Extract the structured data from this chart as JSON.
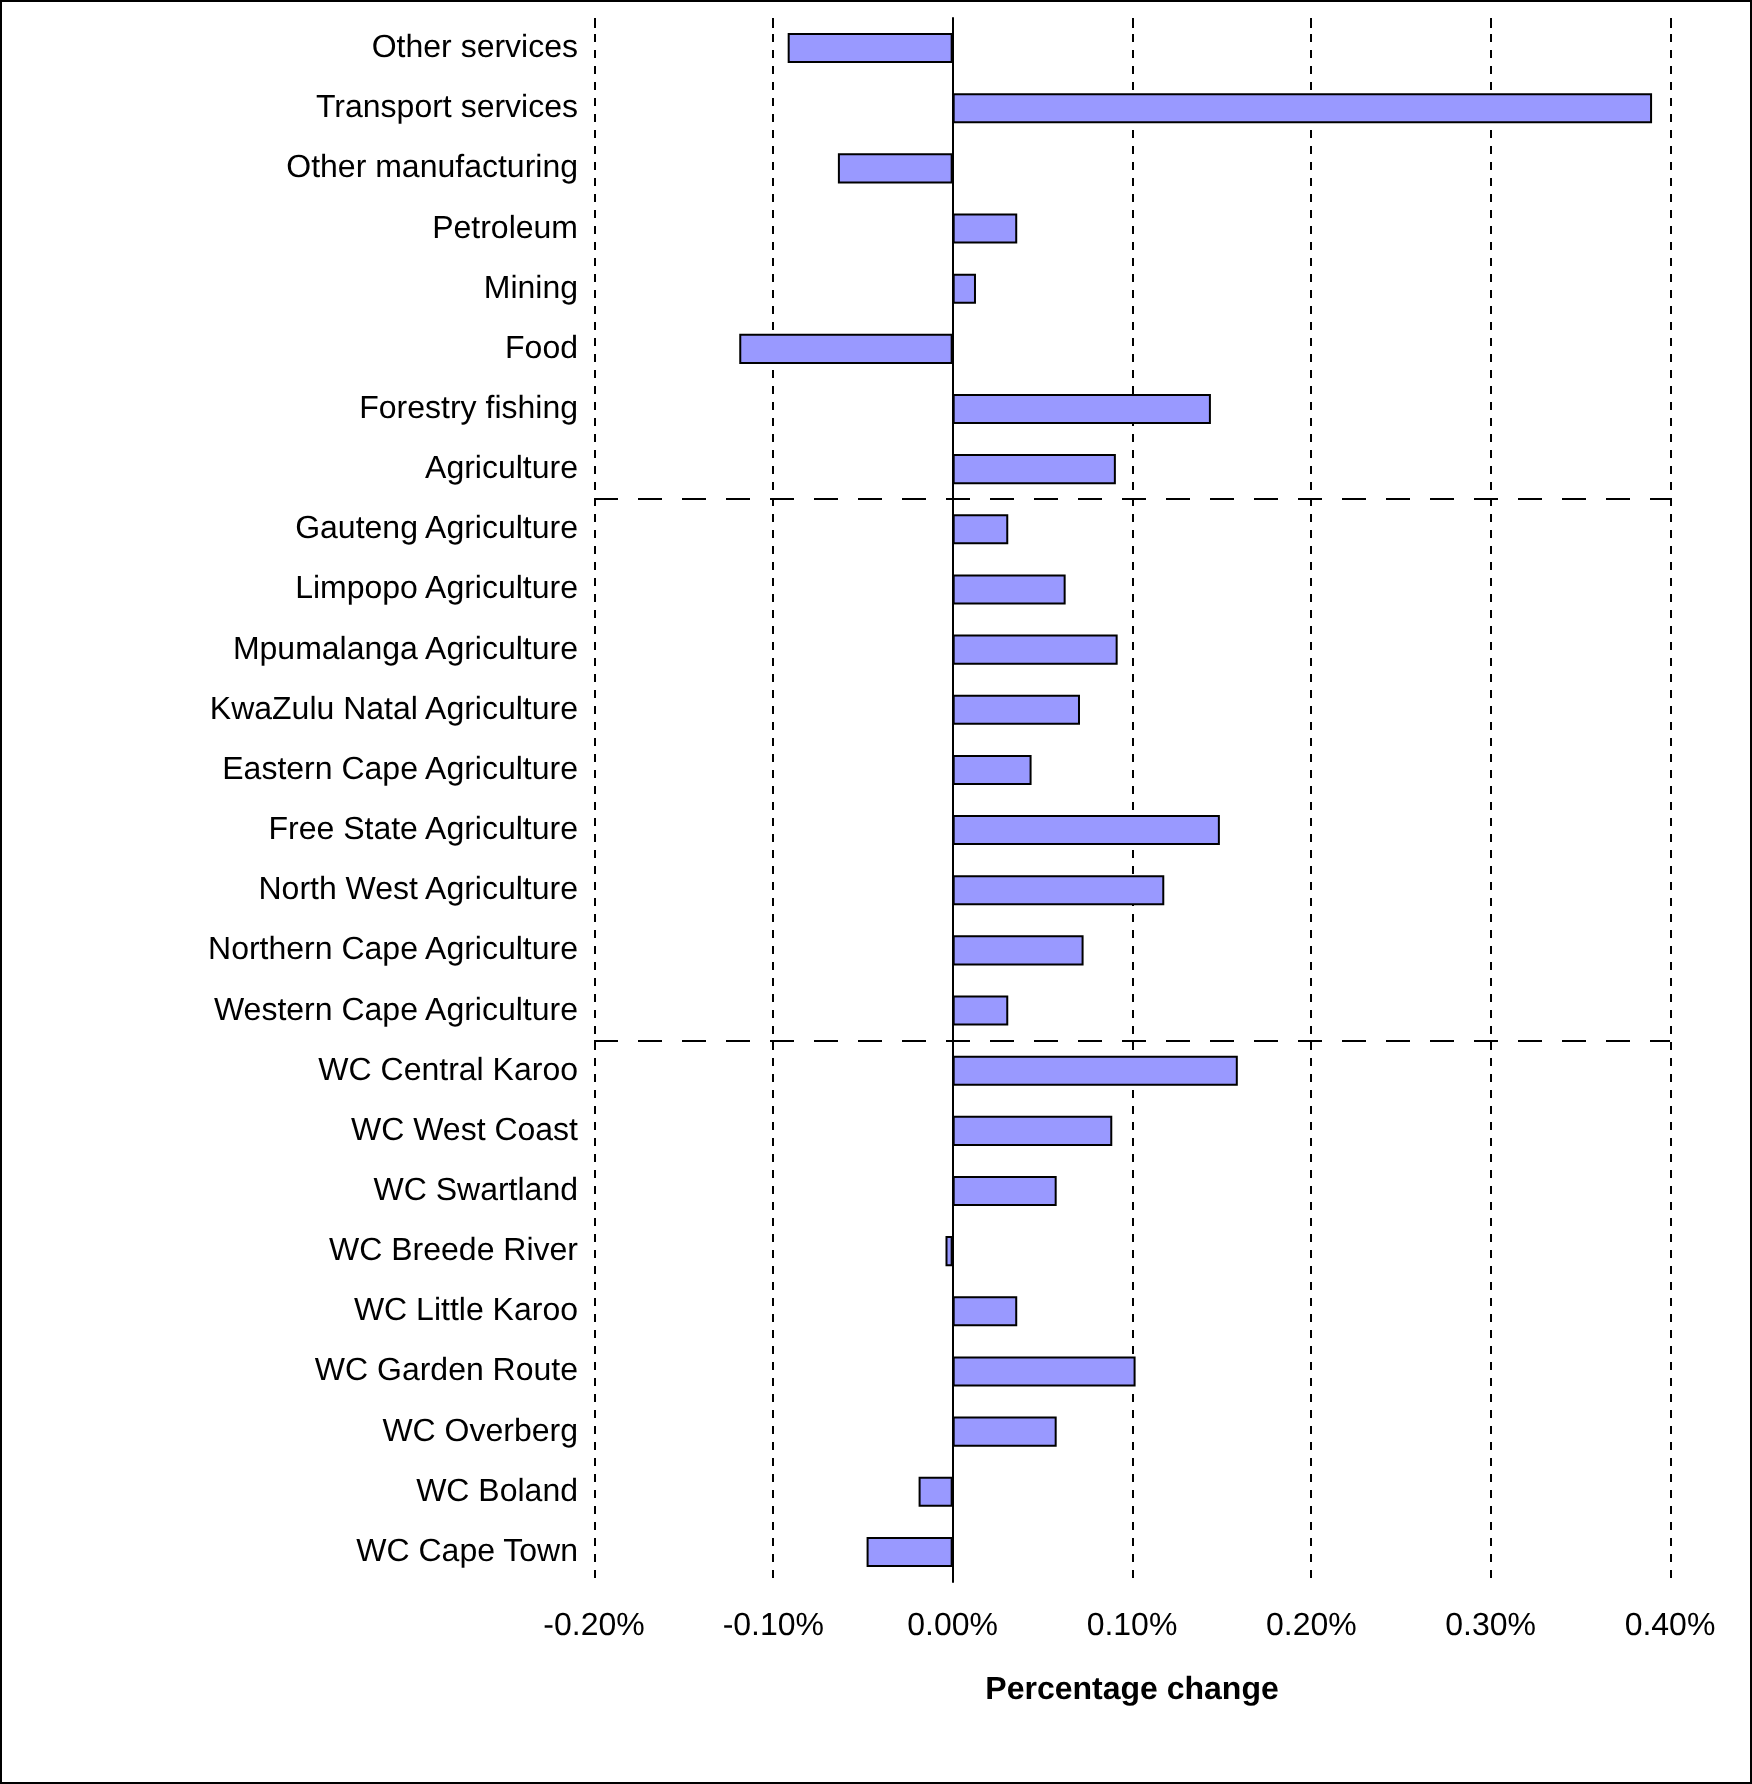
{
  "chart_data": {
    "type": "bar",
    "orientation": "horizontal",
    "xlabel": "Percentage change",
    "categories": [
      "Other services",
      "Transport services",
      "Other manufacturing",
      "Petroleum",
      "Mining",
      "Food",
      "Forestry fishing",
      "Agriculture",
      "Gauteng Agriculture",
      "Limpopo Agriculture",
      "Mpumalanga Agriculture",
      "KwaZulu Natal Agriculture",
      "Eastern Cape Agriculture",
      "Free State Agriculture",
      "North West Agriculture",
      "Northern Cape Agriculture",
      "Western Cape Agriculture",
      "WC Central Karoo",
      "WC West Coast",
      "WC Swartland",
      "WC Breede River",
      "WC Little Karoo",
      "WC Garden Route",
      "WC Overberg",
      "WC Boland",
      "WC Cape Town"
    ],
    "values": [
      -0.092,
      0.39,
      -0.064,
      0.036,
      0.013,
      -0.119,
      0.144,
      0.091,
      0.031,
      0.063,
      0.092,
      0.071,
      0.044,
      0.149,
      0.118,
      0.073,
      0.031,
      0.159,
      0.089,
      0.058,
      -0.004,
      0.036,
      0.102,
      0.058,
      -0.019,
      -0.048
    ],
    "color": "#9999ff",
    "xlim": [
      -0.2,
      0.4
    ],
    "xticks": [
      {
        "value": -0.2,
        "label": "-0.20%"
      },
      {
        "value": -0.1,
        "label": "-0.10%"
      },
      {
        "value": 0,
        "label": "0.00%"
      },
      {
        "value": 0.1,
        "label": "0.10%"
      },
      {
        "value": 0.2,
        "label": "0.20%"
      },
      {
        "value": 0.3,
        "label": "0.30%"
      },
      {
        "value": 0.4,
        "label": "0.40%"
      }
    ],
    "grid": "x",
    "ref_lines": [
      {
        "axis": "y",
        "value": "Agriculture",
        "line_style": "dashed",
        "color": "#000000"
      },
      {
        "axis": "y",
        "value": "Western Cape Agriculture",
        "line_style": "dashed",
        "color": "#000000"
      }
    ]
  }
}
